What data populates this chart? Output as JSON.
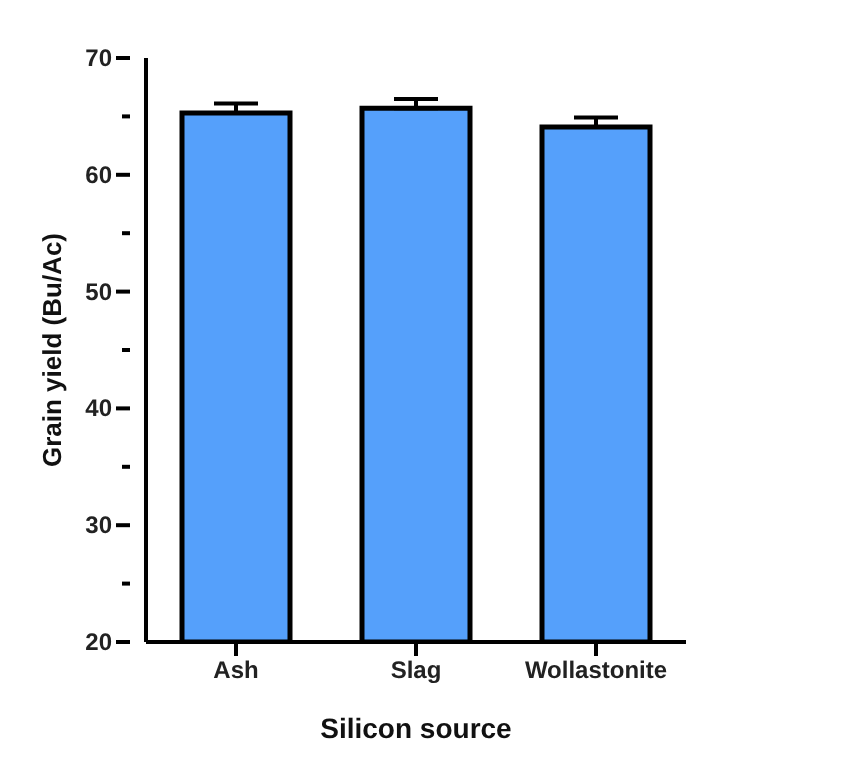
{
  "chart_data": {
    "type": "bar",
    "xlabel": "Silicon source",
    "ylabel": "Grain yield (Bu/Ac)",
    "categories": [
      "Ash",
      "Slag",
      "Wollastonite"
    ],
    "values": [
      65.3,
      65.7,
      64.1
    ],
    "errors": [
      [
        65.3,
        66.1
      ],
      [
        65.7,
        66.5
      ],
      [
        64.1,
        64.9
      ]
    ],
    "color": "#55a0fb",
    "ylim": [
      20,
      70
    ],
    "yticks": [
      20,
      {
        "value": 25,
        "label": null
      },
      30,
      {
        "value": 35,
        "label": null
      },
      40,
      {
        "value": 45,
        "label": null
      },
      50,
      {
        "value": 55,
        "label": null
      },
      60,
      {
        "value": 65,
        "label": null
      },
      70
    ],
    "grid": false,
    "legend": false
  }
}
